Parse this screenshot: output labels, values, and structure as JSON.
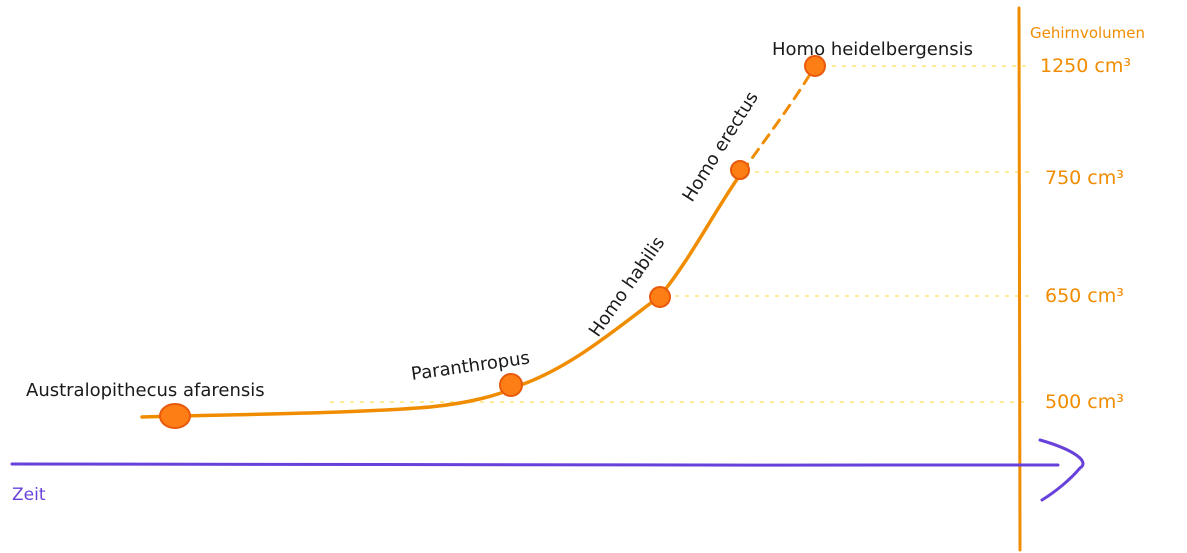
{
  "colors": {
    "curve": "#f08c00",
    "dot_fill": "#fd7e14",
    "dot_stroke": "#e8590c",
    "guide": "#ffec99",
    "time_axis": "#6741d9",
    "label": "#1a1a1a"
  },
  "axes": {
    "x_label": "Zeit",
    "y_label": "Gehirnvolumen"
  },
  "chart_data": {
    "type": "line",
    "y_ticks": [
      {
        "value": 500,
        "label": "500 cm³"
      },
      {
        "value": 650,
        "label": "650 cm³"
      },
      {
        "value": 750,
        "label": "750 cm³"
      },
      {
        "value": 1250,
        "label": "1250 cm³"
      }
    ],
    "species": [
      {
        "name": "Australopithecus afarensis"
      },
      {
        "name": "Paranthropus"
      },
      {
        "name": "Homo habilis"
      },
      {
        "name": "Homo erectus"
      },
      {
        "name": "Homo heidelbergensis"
      }
    ]
  }
}
